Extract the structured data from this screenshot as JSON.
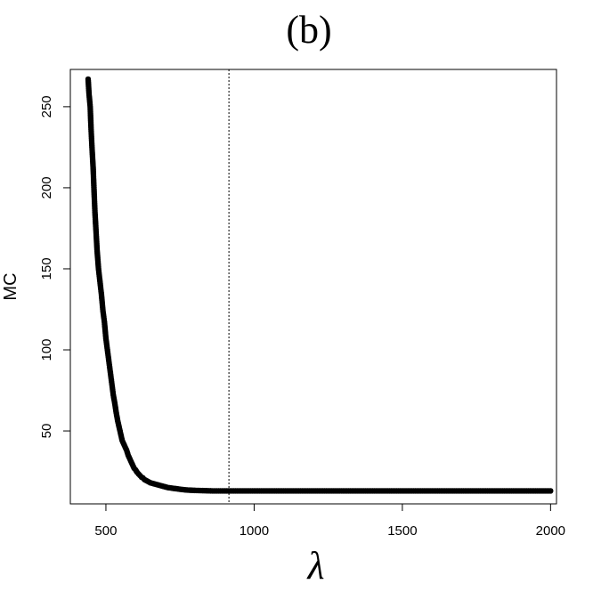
{
  "chart_data": {
    "type": "scatter",
    "title": "(b)",
    "xlabel": "λ",
    "ylabel": "MC",
    "xlim": [
      380,
      2020
    ],
    "ylim": [
      5,
      273
    ],
    "xticks": [
      500,
      1000,
      1500,
      2000
    ],
    "yticks": [
      50,
      100,
      150,
      200,
      250
    ],
    "grid": false,
    "legend": "none",
    "reference_line": {
      "orientation": "vertical",
      "x": 915,
      "style": "dotted"
    },
    "colors": {
      "points": "#000000",
      "axes": "#000000",
      "background": "#ffffff"
    },
    "series": [
      {
        "x": [
          440,
          443,
          447,
          450,
          453,
          457,
          460,
          463,
          467,
          470,
          475,
          480,
          485,
          490,
          495,
          500,
          505,
          510,
          515,
          520,
          525,
          530,
          535,
          540,
          545,
          550,
          555,
          560,
          565,
          570,
          575,
          580,
          585,
          590,
          595,
          600,
          605,
          610,
          615,
          620,
          625,
          630,
          635,
          640,
          645,
          650,
          660,
          670,
          680,
          690,
          700,
          710,
          720,
          730,
          740,
          750,
          760,
          770,
          780,
          790,
          800,
          820,
          840,
          860,
          880,
          900,
          950,
          1000,
          1050,
          1100,
          1150,
          1200,
          1250,
          1300,
          1350,
          1400,
          1450,
          1500,
          1550,
          1600,
          1650,
          1700,
          1750,
          1800,
          1850,
          1900,
          1950,
          2000
        ],
        "y": [
          267,
          258,
          250,
          236,
          225,
          212,
          198,
          185,
          172,
          162,
          150,
          142,
          134,
          124,
          117,
          107,
          100,
          93,
          86,
          79,
          72,
          67,
          61,
          56,
          52,
          48,
          44,
          42,
          40,
          38,
          35,
          33,
          31,
          29,
          27,
          26,
          24.5,
          23.5,
          22.5,
          21.5,
          21,
          20,
          19.5,
          19,
          18.5,
          18,
          17.5,
          17,
          16.5,
          16,
          15.5,
          15,
          14.8,
          14.5,
          14.3,
          14,
          13.8,
          13.6,
          13.5,
          13.4,
          13.3,
          13.2,
          13.1,
          13,
          13,
          13,
          13,
          13,
          13,
          13,
          13,
          13,
          13,
          13,
          13,
          13,
          13,
          13,
          13,
          13,
          13,
          13,
          13,
          13,
          13,
          13,
          13,
          13
        ]
      }
    ]
  }
}
